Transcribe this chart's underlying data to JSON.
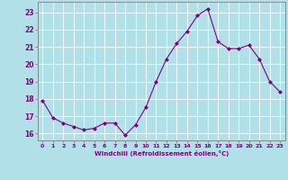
{
  "x": [
    0,
    1,
    2,
    3,
    4,
    5,
    6,
    7,
    8,
    9,
    10,
    11,
    12,
    13,
    14,
    15,
    16,
    17,
    18,
    19,
    20,
    21,
    22,
    23
  ],
  "y": [
    17.9,
    16.9,
    16.6,
    16.4,
    16.2,
    16.3,
    16.6,
    16.6,
    15.9,
    16.5,
    17.5,
    19.0,
    20.3,
    21.2,
    21.9,
    22.8,
    23.2,
    21.3,
    20.9,
    20.9,
    21.1,
    20.3,
    19.0,
    18.4
  ],
  "line_color": "#800080",
  "marker": "D",
  "marker_size": 2,
  "bg_color": "#b2e0e8",
  "grid_color": "#ffffff",
  "ylabel_ticks": [
    16,
    17,
    18,
    19,
    20,
    21,
    22,
    23
  ],
  "xlabel": "Windchill (Refroidissement éolien,°C)",
  "xlabel_color": "#800080",
  "tick_color": "#800080",
  "ylim": [
    15.6,
    23.6
  ],
  "xlim": [
    -0.5,
    23.5
  ]
}
